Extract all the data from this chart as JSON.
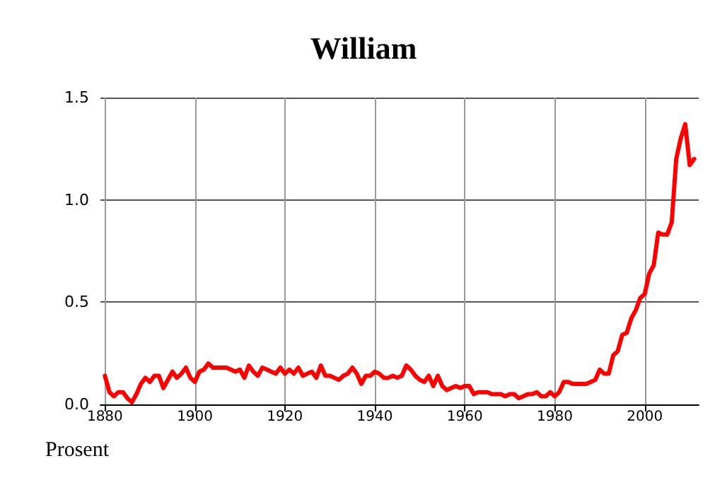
{
  "chart_data": {
    "type": "line",
    "title": "William",
    "ylabel": "Prosent",
    "x": [
      1880,
      1881,
      1882,
      1883,
      1884,
      1885,
      1886,
      1887,
      1888,
      1889,
      1890,
      1891,
      1892,
      1893,
      1894,
      1895,
      1896,
      1897,
      1898,
      1899,
      1900,
      1901,
      1902,
      1903,
      1904,
      1905,
      1906,
      1907,
      1908,
      1909,
      1910,
      1911,
      1912,
      1913,
      1914,
      1915,
      1916,
      1917,
      1918,
      1919,
      1920,
      1921,
      1922,
      1923,
      1924,
      1925,
      1926,
      1927,
      1928,
      1929,
      1930,
      1931,
      1932,
      1933,
      1934,
      1935,
      1936,
      1937,
      1938,
      1939,
      1940,
      1941,
      1942,
      1943,
      1944,
      1945,
      1946,
      1947,
      1948,
      1949,
      1950,
      1951,
      1952,
      1953,
      1954,
      1955,
      1956,
      1957,
      1958,
      1959,
      1960,
      1961,
      1962,
      1963,
      1964,
      1965,
      1966,
      1967,
      1968,
      1969,
      1970,
      1971,
      1972,
      1973,
      1974,
      1975,
      1976,
      1977,
      1978,
      1979,
      1980,
      1981,
      1982,
      1983,
      1984,
      1985,
      1986,
      1987,
      1988,
      1989,
      1990,
      1991,
      1992,
      1993,
      1994,
      1995,
      1996,
      1997,
      1998,
      1999,
      2000,
      2001,
      2002,
      2003,
      2004,
      2005,
      2006,
      2007,
      2008,
      2009,
      2010,
      2011
    ],
    "series": [
      {
        "color": "#ff0000",
        "values": [
          0.14,
          0.06,
          0.04,
          0.06,
          0.06,
          0.03,
          0.01,
          0.05,
          0.1,
          0.13,
          0.11,
          0.14,
          0.14,
          0.08,
          0.12,
          0.16,
          0.13,
          0.15,
          0.18,
          0.13,
          0.11,
          0.16,
          0.17,
          0.2,
          0.18,
          0.18,
          0.18,
          0.18,
          0.17,
          0.16,
          0.17,
          0.13,
          0.19,
          0.16,
          0.14,
          0.18,
          0.17,
          0.16,
          0.15,
          0.18,
          0.15,
          0.17,
          0.15,
          0.18,
          0.14,
          0.15,
          0.16,
          0.13,
          0.19,
          0.14,
          0.14,
          0.13,
          0.12,
          0.14,
          0.15,
          0.18,
          0.15,
          0.1,
          0.14,
          0.14,
          0.16,
          0.15,
          0.13,
          0.13,
          0.14,
          0.13,
          0.14,
          0.19,
          0.17,
          0.14,
          0.12,
          0.11,
          0.14,
          0.09,
          0.14,
          0.09,
          0.07,
          0.08,
          0.09,
          0.08,
          0.09,
          0.09,
          0.05,
          0.06,
          0.06,
          0.06,
          0.05,
          0.05,
          0.05,
          0.04,
          0.05,
          0.05,
          0.03,
          0.04,
          0.05,
          0.05,
          0.06,
          0.04,
          0.04,
          0.06,
          0.04,
          0.06,
          0.11,
          0.11,
          0.1,
          0.1,
          0.1,
          0.1,
          0.11,
          0.12,
          0.17,
          0.15,
          0.15,
          0.24,
          0.26,
          0.34,
          0.35,
          0.42,
          0.46,
          0.52,
          0.54,
          0.64,
          0.68,
          0.84,
          0.83,
          0.83,
          0.89,
          1.2,
          1.3,
          1.37,
          1.17,
          1.2
        ]
      }
    ],
    "xlim": [
      1879,
      2012
    ],
    "xticks": [
      1880,
      1900,
      1920,
      1940,
      1960,
      1980,
      2000
    ],
    "ylim": [
      0,
      1.5
    ],
    "yticks": [
      {
        "value": 0,
        "label": "0.0"
      },
      0.5,
      {
        "value": 1,
        "label": "1.0"
      },
      1.5
    ],
    "grid": true,
    "marker": "none",
    "line_style": "solid"
  }
}
